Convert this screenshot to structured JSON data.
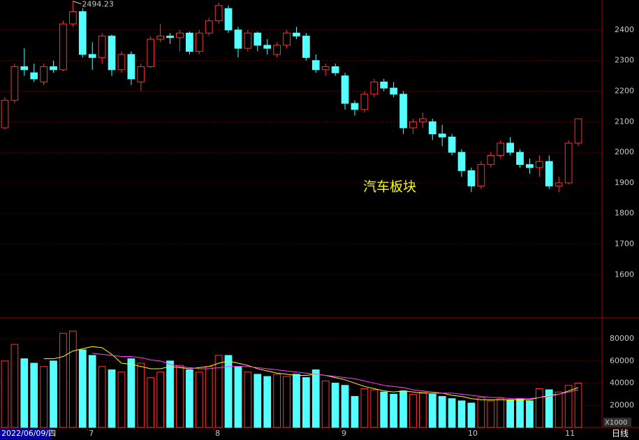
{
  "chart_data": {
    "type": "candlestick",
    "annotation": "汽车板块",
    "period_label": "日线",
    "volume_unit": "X1000",
    "categories": [
      "2022/06/09/四",
      null,
      null,
      null,
      null,
      null,
      null,
      null,
      null,
      "7",
      null,
      null,
      null,
      null,
      null,
      null,
      null,
      null,
      null,
      null,
      null,
      null,
      "8",
      null,
      null,
      null,
      null,
      null,
      null,
      null,
      null,
      null,
      null,
      null,
      null,
      "9",
      null,
      null,
      null,
      null,
      null,
      null,
      null,
      null,
      null,
      null,
      null,
      null,
      "10",
      null,
      null,
      null,
      null,
      null,
      null,
      null,
      null,
      null,
      "11",
      null
    ],
    "open": [
      2080,
      2170,
      2280,
      2260,
      2230,
      2280,
      2270,
      2420,
      2460,
      2320,
      2310,
      2380,
      2270,
      2320,
      2230,
      2280,
      2370,
      2380,
      2375,
      2390,
      2330,
      2390,
      2430,
      2470,
      2400,
      2340,
      2390,
      2350,
      2320,
      2350,
      2390,
      2380,
      2300,
      2270,
      2280,
      2250,
      2160,
      2140,
      2190,
      2230,
      2210,
      2190,
      2080,
      2100,
      2100,
      2060,
      2050,
      2000,
      1940,
      1890,
      1960,
      1990,
      2030,
      2000,
      1960,
      1950,
      1970,
      1890,
      1900,
      2030
    ],
    "high": [
      2180,
      2290,
      2340,
      2290,
      2290,
      2300,
      2430,
      2494.23,
      2470,
      2360,
      2390,
      2385,
      2330,
      2330,
      2290,
      2380,
      2420,
      2390,
      2400,
      2395,
      2400,
      2440,
      2490,
      2480,
      2410,
      2400,
      2395,
      2370,
      2360,
      2400,
      2410,
      2390,
      2320,
      2290,
      2290,
      2260,
      2170,
      2200,
      2240,
      2240,
      2230,
      2200,
      2110,
      2130,
      2110,
      2090,
      2060,
      2010,
      1950,
      1970,
      2000,
      2040,
      2050,
      2010,
      1980,
      1990,
      1990,
      1920,
      2040,
      2110
    ],
    "low": [
      2075,
      2160,
      2250,
      2230,
      2220,
      2260,
      2265,
      2410,
      2310,
      2270,
      2290,
      2250,
      2260,
      2220,
      2200,
      2275,
      2360,
      2355,
      2330,
      2320,
      2320,
      2380,
      2420,
      2390,
      2310,
      2330,
      2330,
      2320,
      2310,
      2340,
      2370,
      2300,
      2260,
      2250,
      2250,
      2140,
      2120,
      2130,
      2180,
      2200,
      2180,
      2060,
      2060,
      2080,
      2040,
      2020,
      1990,
      1920,
      1870,
      1880,
      1950,
      1980,
      1990,
      1950,
      1930,
      1920,
      1880,
      1870,
      1895,
      2020
    ],
    "close": [
      2170,
      2280,
      2270,
      2240,
      2280,
      2270,
      2420,
      2460,
      2320,
      2310,
      2380,
      2270,
      2320,
      2240,
      2280,
      2370,
      2380,
      2375,
      2390,
      2330,
      2390,
      2430,
      2480,
      2400,
      2340,
      2390,
      2350,
      2340,
      2350,
      2390,
      2380,
      2310,
      2270,
      2280,
      2260,
      2160,
      2140,
      2190,
      2230,
      2210,
      2190,
      2080,
      2100,
      2110,
      2060,
      2050,
      2000,
      1940,
      1890,
      1960,
      1990,
      2030,
      2000,
      1960,
      1950,
      1970,
      1890,
      1900,
      2030,
      2110
    ],
    "volume": [
      60000,
      75000,
      62000,
      58000,
      55000,
      60000,
      85000,
      87000,
      70000,
      65000,
      55000,
      52000,
      50000,
      62000,
      58000,
      45000,
      50000,
      60000,
      56000,
      52000,
      50000,
      55000,
      65000,
      65000,
      55000,
      50000,
      48000,
      46000,
      48000,
      46000,
      48000,
      45000,
      52000,
      42000,
      40000,
      38000,
      28000,
      35000,
      34000,
      32000,
      30000,
      33000,
      30000,
      32000,
      30000,
      28000,
      26000,
      24000,
      22000,
      27000,
      24000,
      26000,
      25000,
      26000,
      24000,
      35000,
      34000,
      32000,
      38000,
      40000
    ],
    "volume_ma": [
      {
        "color": "#ffff00",
        "values": [
          null,
          null,
          null,
          null,
          62000,
          62000,
          64000,
          69000,
          71000,
          73000,
          72000,
          66000,
          58000,
          57000,
          55000,
          53000,
          53000,
          55000,
          54000,
          53000,
          54000,
          55000,
          58000,
          60000,
          58000,
          56000,
          53000,
          51000,
          49000,
          48000,
          47000,
          47000,
          48000,
          47000,
          45000,
          43000,
          40000,
          37000,
          35000,
          33000,
          32000,
          33000,
          32000,
          31000,
          31000,
          31000,
          29000,
          28000,
          26000,
          25000,
          25000,
          25000,
          25000,
          25000,
          25000,
          27000,
          29000,
          30000,
          33000,
          36000
        ]
      },
      {
        "color": "#ff40ff",
        "values": [
          null,
          null,
          null,
          null,
          null,
          null,
          null,
          null,
          null,
          67000,
          66000,
          65000,
          64000,
          64000,
          63000,
          61000,
          60000,
          57000,
          55000,
          54000,
          53000,
          53000,
          54000,
          55000,
          55000,
          55000,
          54000,
          53000,
          52000,
          51000,
          50000,
          49000,
          48000,
          47000,
          46000,
          45000,
          44000,
          42000,
          40000,
          38000,
          37000,
          36000,
          34000,
          33000,
          32000,
          31000,
          31000,
          30000,
          29000,
          28000,
          27000,
          27000,
          26000,
          26000,
          26000,
          27000,
          28000,
          30000,
          32000,
          34000
        ]
      }
    ],
    "up_color": "#ff3232",
    "down_color": "#54ffff",
    "ylim": [
      1459,
      2498
    ],
    "yticks": [
      1600,
      1700,
      1800,
      1900,
      2000,
      2100,
      2200,
      2300,
      2400
    ],
    "y2lim": [
      0,
      99000
    ],
    "y2ticks": [
      20000,
      40000,
      60000,
      80000
    ],
    "grid": true
  }
}
